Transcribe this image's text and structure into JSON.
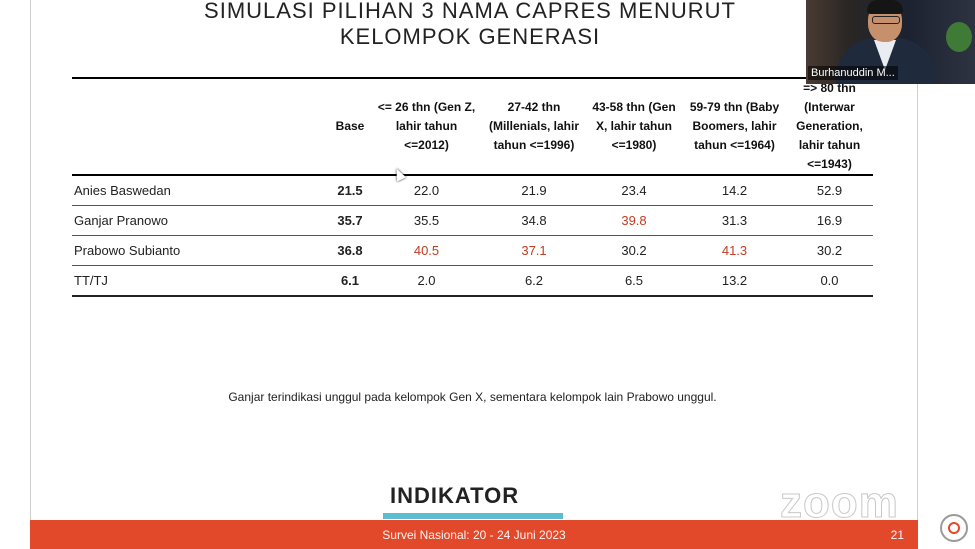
{
  "slide": {
    "title_line1": "SIMULASI PILIHAN 3 NAMA CAPRES MENURUT",
    "title_line2": "KELOMPOK GENERASI",
    "note": "Ganjar terindikasi unggul pada kelompok Gen X, sementara kelompok lain Prabowo unggul.",
    "logo": "INDIKATOR",
    "footer_survey": "Survei Nasional: 20 - 24 Juni 2023",
    "page_number": "21",
    "highlight_color": "#c23b22",
    "footer_color": "#e2492a",
    "accent_line_color": "#5dbdd0"
  },
  "table": {
    "headers": [
      "",
      "Base",
      "<= 26 thn (Gen Z, lahir tahun <=2012)",
      "27-42 thn (Millenials, lahir tahun <=1996)",
      "43-58 thn (Gen X, lahir tahun <=1980)",
      "59-79 thn (Baby Boomers, lahir tahun <=1964)",
      "=> 80 thn (Interwar Generation, lahir tahun <=1943)"
    ],
    "rows": [
      {
        "name": "Anies Baswedan",
        "values": [
          "21.5",
          "22.0",
          "21.9",
          "23.4",
          "14.2",
          "52.9"
        ]
      },
      {
        "name": "Ganjar Pranowo",
        "values": [
          "35.7",
          "35.5",
          "34.8",
          "39.8",
          "31.3",
          "16.9"
        ]
      },
      {
        "name": "Prabowo Subianto",
        "values": [
          "36.8",
          "40.5",
          "37.1",
          "30.2",
          "41.3",
          "30.2"
        ]
      },
      {
        "name": "TT/TJ",
        "values": [
          "6.1",
          "2.0",
          "6.2",
          "6.5",
          "13.2",
          "0.0"
        ]
      }
    ]
  },
  "video": {
    "participant_name": "Burhanuddin M..."
  },
  "zoom": {
    "watermark": "zoom"
  }
}
